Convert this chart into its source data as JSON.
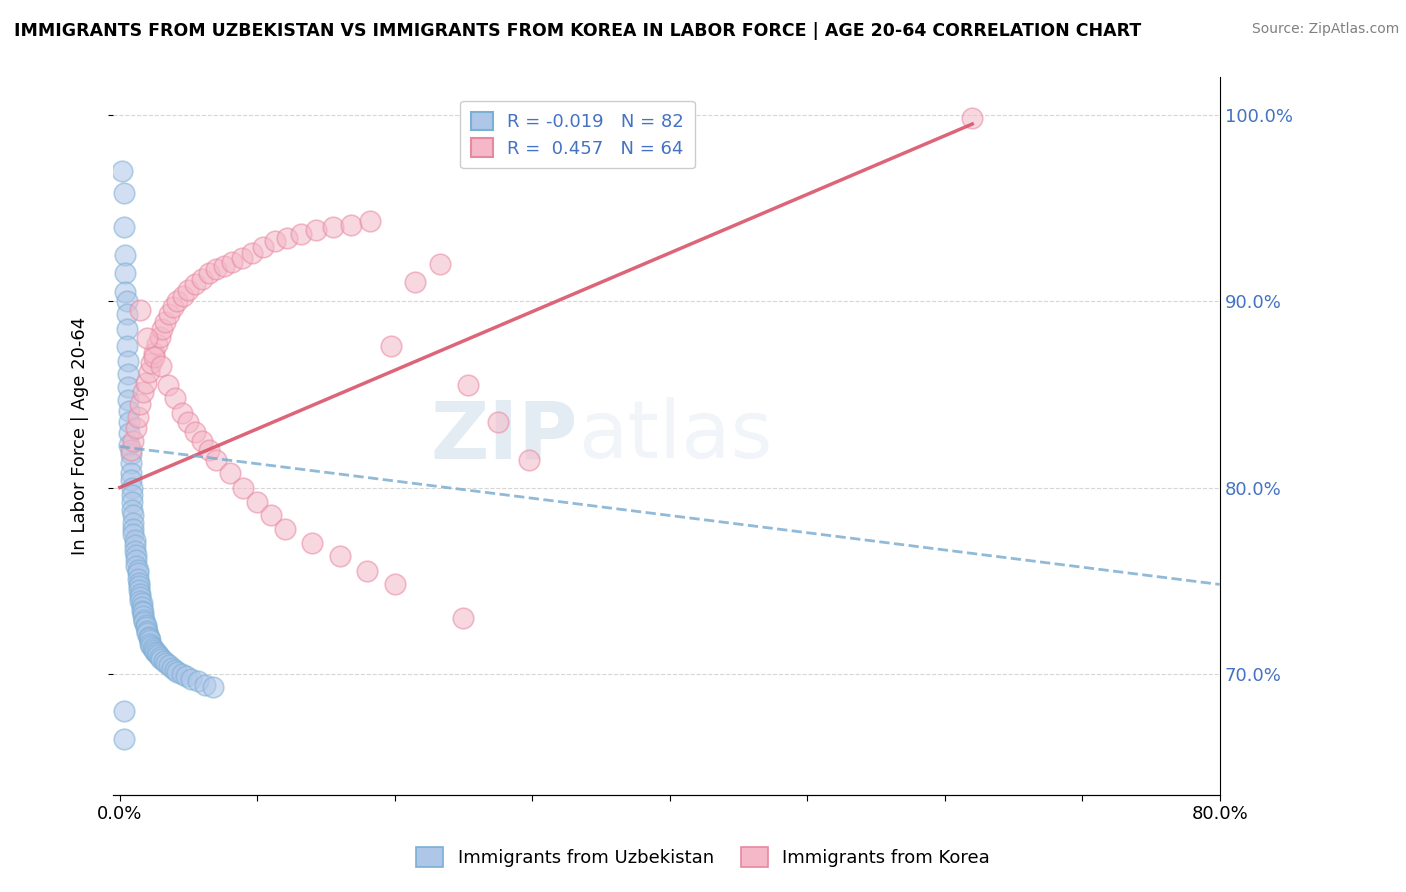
{
  "title": "IMMIGRANTS FROM UZBEKISTAN VS IMMIGRANTS FROM KOREA IN LABOR FORCE | AGE 20-64 CORRELATION CHART",
  "source": "Source: ZipAtlas.com",
  "ylabel": "In Labor Force | Age 20-64",
  "xlim": [
    -0.005,
    0.8
  ],
  "ylim": [
    0.635,
    1.02
  ],
  "yticks": [
    0.7,
    0.8,
    0.9,
    1.0
  ],
  "ytick_labels": [
    "70.0%",
    "80.0%",
    "90.0%",
    "100.0%"
  ],
  "xticks": [
    0.0,
    0.1,
    0.2,
    0.3,
    0.4,
    0.5,
    0.6,
    0.7,
    0.8
  ],
  "xtick_labels": [
    "0.0%",
    "",
    "",
    "",
    "",
    "",
    "",
    "",
    "80.0%"
  ],
  "uzb_color": "#aec6e8",
  "uzb_edge_color": "#7bafd4",
  "kor_color": "#f4b8c8",
  "kor_edge_color": "#e888a0",
  "uzb_trend_color": "#74a9cf",
  "kor_trend_color": "#d9546a",
  "background_color": "#ffffff",
  "grid_color": "#cccccc",
  "tick_color": "#4472c4",
  "watermark1": "ZIP",
  "watermark2": "atlas",
  "legend_r1": "R = -0.019",
  "legend_n1": "N = 82",
  "legend_r2": "R =  0.457",
  "legend_n2": "N = 64",
  "uzb_x": [
    0.002,
    0.003,
    0.003,
    0.004,
    0.004,
    0.004,
    0.005,
    0.005,
    0.005,
    0.005,
    0.006,
    0.006,
    0.006,
    0.006,
    0.007,
    0.007,
    0.007,
    0.007,
    0.008,
    0.008,
    0.008,
    0.008,
    0.009,
    0.009,
    0.009,
    0.009,
    0.01,
    0.01,
    0.01,
    0.01,
    0.011,
    0.011,
    0.011,
    0.012,
    0.012,
    0.012,
    0.013,
    0.013,
    0.013,
    0.014,
    0.014,
    0.014,
    0.015,
    0.015,
    0.015,
    0.016,
    0.016,
    0.016,
    0.017,
    0.017,
    0.018,
    0.018,
    0.019,
    0.019,
    0.02,
    0.02,
    0.021,
    0.021,
    0.022,
    0.022,
    0.023,
    0.024,
    0.025,
    0.026,
    0.027,
    0.028,
    0.029,
    0.03,
    0.032,
    0.034,
    0.036,
    0.038,
    0.04,
    0.042,
    0.045,
    0.048,
    0.052,
    0.057,
    0.062,
    0.068,
    0.003,
    0.003
  ],
  "uzb_y": [
    0.97,
    0.958,
    0.94,
    0.925,
    0.915,
    0.905,
    0.9,
    0.893,
    0.885,
    0.876,
    0.868,
    0.861,
    0.854,
    0.847,
    0.841,
    0.835,
    0.829,
    0.823,
    0.818,
    0.813,
    0.808,
    0.804,
    0.8,
    0.796,
    0.792,
    0.788,
    0.785,
    0.781,
    0.778,
    0.775,
    0.772,
    0.769,
    0.766,
    0.764,
    0.761,
    0.758,
    0.756,
    0.754,
    0.751,
    0.749,
    0.747,
    0.745,
    0.743,
    0.741,
    0.739,
    0.738,
    0.736,
    0.734,
    0.733,
    0.731,
    0.729,
    0.728,
    0.726,
    0.725,
    0.723,
    0.722,
    0.72,
    0.719,
    0.718,
    0.716,
    0.715,
    0.714,
    0.713,
    0.712,
    0.711,
    0.71,
    0.709,
    0.708,
    0.707,
    0.706,
    0.705,
    0.703,
    0.702,
    0.701,
    0.7,
    0.699,
    0.697,
    0.696,
    0.694,
    0.693,
    0.68,
    0.665
  ],
  "kor_x": [
    0.008,
    0.01,
    0.012,
    0.013,
    0.015,
    0.017,
    0.019,
    0.021,
    0.023,
    0.025,
    0.027,
    0.029,
    0.031,
    0.033,
    0.036,
    0.039,
    0.042,
    0.046,
    0.05,
    0.055,
    0.06,
    0.065,
    0.07,
    0.076,
    0.082,
    0.089,
    0.096,
    0.104,
    0.113,
    0.122,
    0.132,
    0.143,
    0.155,
    0.168,
    0.182,
    0.197,
    0.215,
    0.233,
    0.253,
    0.275,
    0.298,
    0.015,
    0.02,
    0.025,
    0.03,
    0.035,
    0.04,
    0.045,
    0.05,
    0.055,
    0.06,
    0.065,
    0.07,
    0.08,
    0.09,
    0.1,
    0.11,
    0.12,
    0.14,
    0.16,
    0.18,
    0.2,
    0.25,
    0.62
  ],
  "kor_y": [
    0.82,
    0.825,
    0.832,
    0.838,
    0.845,
    0.851,
    0.856,
    0.862,
    0.867,
    0.872,
    0.877,
    0.881,
    0.885,
    0.889,
    0.893,
    0.897,
    0.9,
    0.903,
    0.906,
    0.909,
    0.912,
    0.915,
    0.917,
    0.919,
    0.921,
    0.923,
    0.926,
    0.929,
    0.932,
    0.934,
    0.936,
    0.938,
    0.94,
    0.941,
    0.943,
    0.876,
    0.91,
    0.92,
    0.855,
    0.835,
    0.815,
    0.895,
    0.88,
    0.87,
    0.865,
    0.855,
    0.848,
    0.84,
    0.835,
    0.83,
    0.825,
    0.82,
    0.815,
    0.808,
    0.8,
    0.792,
    0.785,
    0.778,
    0.77,
    0.763,
    0.755,
    0.748,
    0.73,
    0.998
  ],
  "uzb_trend_x": [
    0.0,
    0.8
  ],
  "uzb_trend_y": [
    0.822,
    0.748
  ],
  "kor_trend_x": [
    0.0,
    0.62
  ],
  "kor_trend_y": [
    0.8,
    0.995
  ]
}
